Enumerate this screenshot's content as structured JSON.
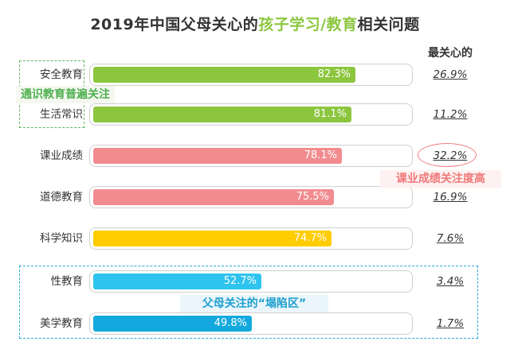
{
  "title_prefix": "2019年中国父母关心的",
  "title_highlight": "孩子学习/教育",
  "title_suffix": "相关问题",
  "most_concern_header": "最关心的",
  "annotations": {
    "general_education": "通识教育普遍关注",
    "grades": "课业成绩关注度高",
    "depression_zone": "父母关注的“塌陷区”"
  },
  "chart_data": {
    "type": "bar",
    "orientation": "horizontal",
    "title": "2019年中国父母关心的孩子学习/教育相关问题",
    "categories": [
      "安全教育",
      "生活常识",
      "课业成绩",
      "道德教育",
      "科学知识",
      "性教育",
      "美学教育"
    ],
    "series": [
      {
        "values": [
          82.3,
          81.1,
          78.1,
          75.5,
          74.7,
          52.7,
          49.8
        ]
      },
      {
        "name": "最关心的",
        "values": [
          26.9,
          11.2,
          32.2,
          16.9,
          7.6,
          3.4,
          1.7
        ]
      }
    ],
    "value_labels": [
      "82.3%",
      "81.1%",
      "78.1%",
      "75.5%",
      "74.7%",
      "52.7%",
      "49.8%"
    ],
    "most_labels": [
      "26.9%",
      "11.2%",
      "32.2%",
      "16.9%",
      "7.6%",
      "3.4%",
      "1.7%"
    ],
    "colors": [
      "#8cc63f",
      "#8cc63f",
      "#f28b8f",
      "#f28b8f",
      "#ffcc00",
      "#2ec4ef",
      "#13a9de"
    ],
    "xlim": [
      0,
      100
    ],
    "grid": false
  }
}
